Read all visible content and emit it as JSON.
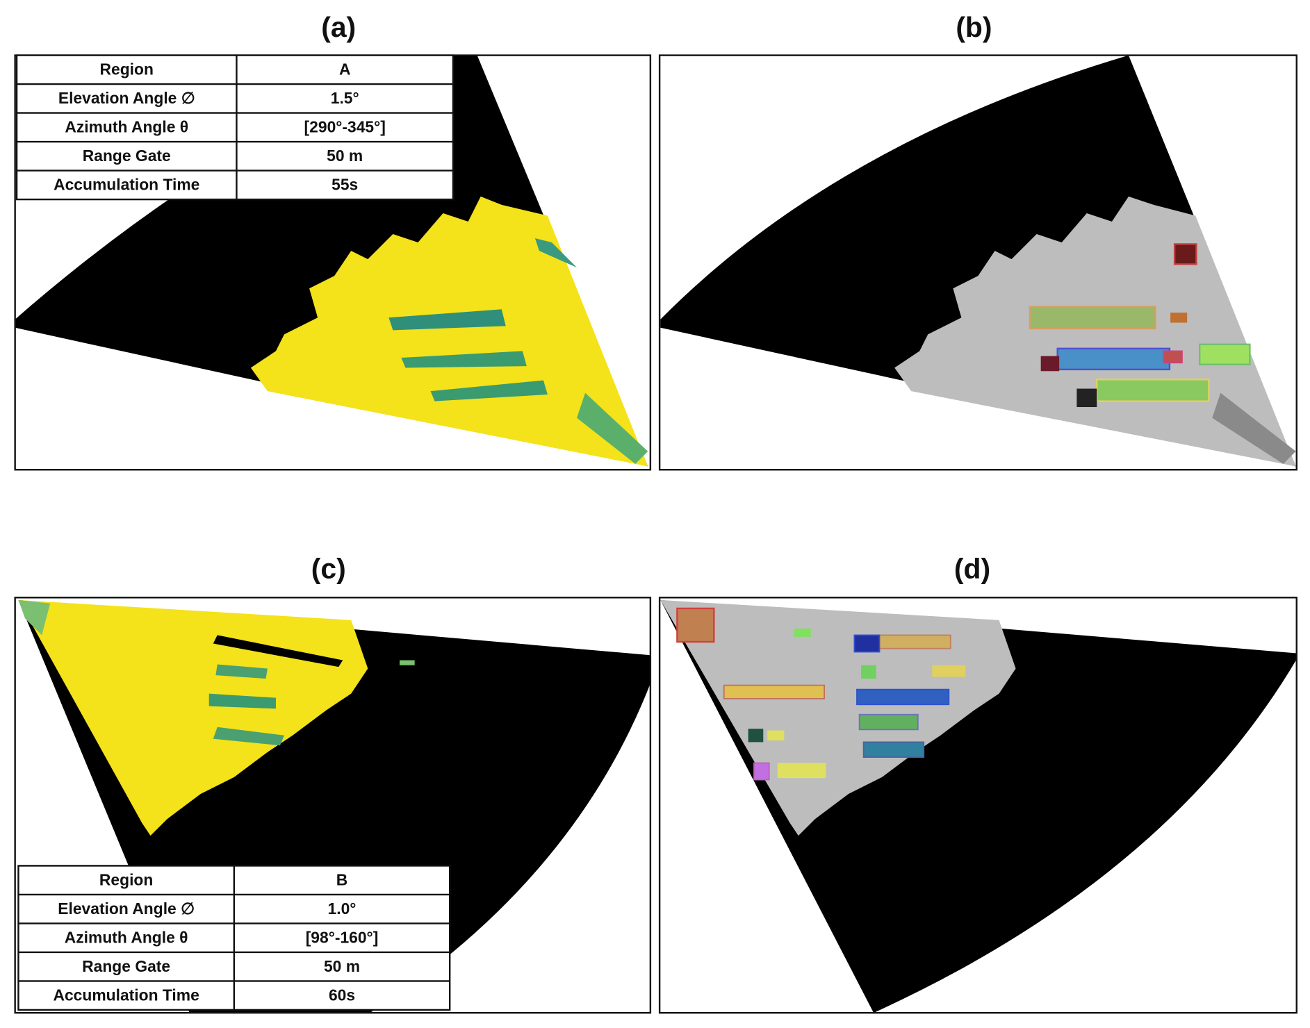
{
  "panels": [
    {
      "label": "(a)",
      "table": {
        "rows": [
          [
            "Region",
            "A"
          ],
          [
            "Elevation Angle ∅",
            "1.5°"
          ],
          [
            "Azimuth Angle θ",
            "[290°-345°]"
          ],
          [
            "Range Gate",
            "50 m"
          ],
          [
            "Accumulation Time",
            "55s"
          ]
        ]
      }
    },
    {
      "label": "(b)"
    },
    {
      "label": "(c)",
      "table": {
        "rows": [
          [
            "Region",
            "B"
          ],
          [
            "Elevation Angle ∅",
            "1.0°"
          ],
          [
            "Azimuth Angle θ",
            "[98°-160°]"
          ],
          [
            "Range Gate",
            "50 m"
          ],
          [
            "Accumulation Time",
            "60s"
          ]
        ]
      }
    },
    {
      "label": "(d)"
    }
  ]
}
